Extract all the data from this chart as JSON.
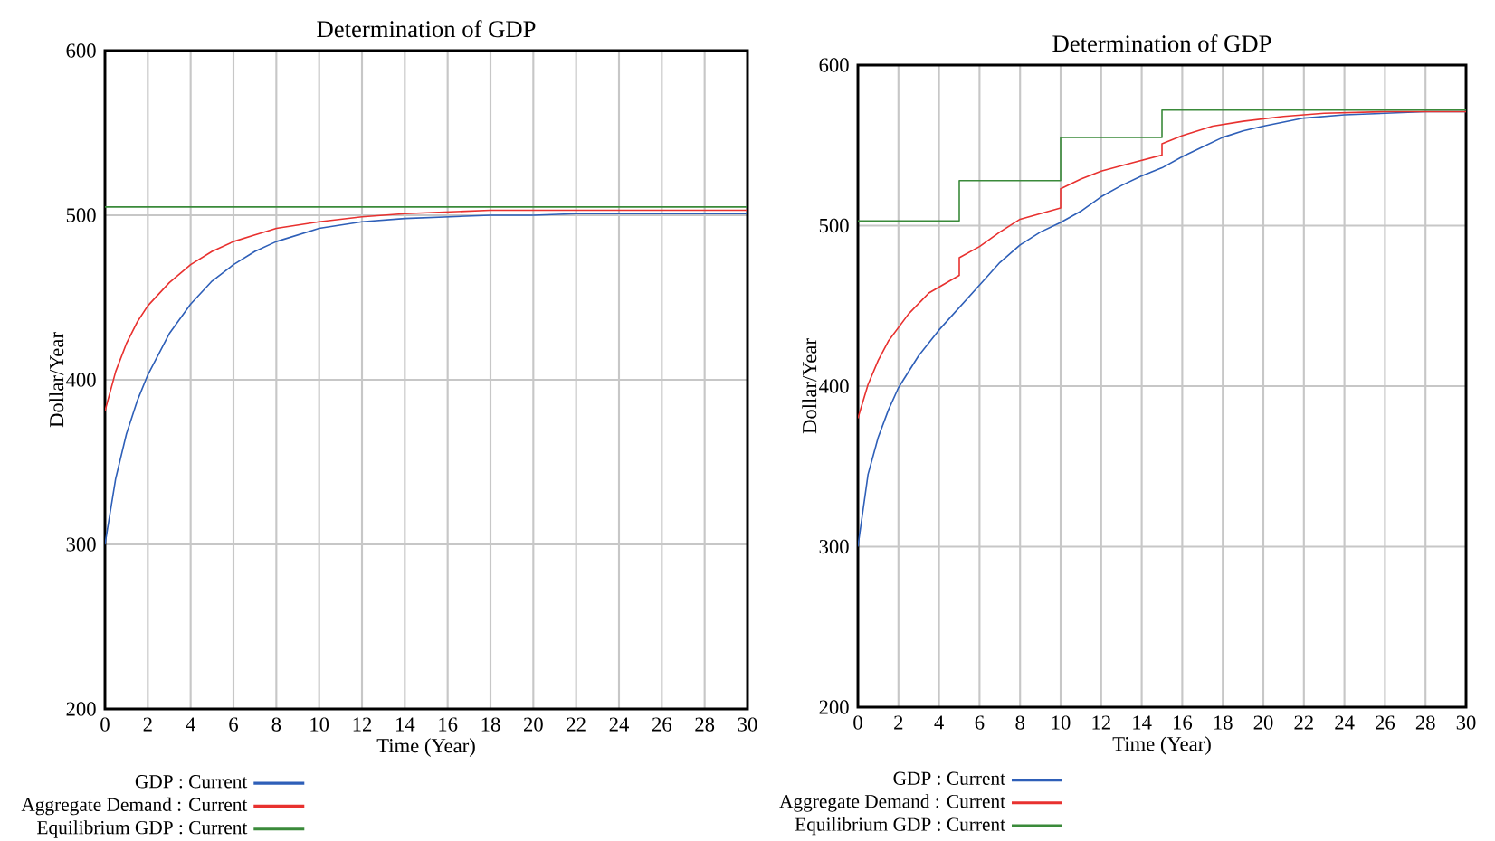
{
  "chart_data": [
    {
      "type": "line",
      "title": "Determination of GDP",
      "xlabel": "Time (Year)",
      "ylabel": "Dollar/Year",
      "xlim": [
        0,
        30
      ],
      "ylim": [
        200,
        600
      ],
      "xticks": [
        0,
        2,
        4,
        6,
        8,
        10,
        12,
        14,
        16,
        18,
        20,
        22,
        24,
        26,
        28,
        30
      ],
      "yticks": [
        200,
        300,
        400,
        500,
        600
      ],
      "grid": true,
      "legend": "bottom",
      "series": [
        {
          "name": "GDP : Current",
          "color": "#2e5fb8",
          "x": [
            0,
            0.5,
            1,
            1.5,
            2,
            3,
            4,
            5,
            6,
            7,
            8,
            10,
            12,
            14,
            16,
            18,
            20,
            22,
            25,
            30
          ],
          "values": [
            300,
            340,
            367,
            387,
            403,
            428,
            446,
            460,
            470,
            478,
            484,
            492,
            496,
            498,
            499,
            500,
            500,
            501,
            501,
            501
          ]
        },
        {
          "name": "Aggregate Demand : Current",
          "color": "#e8312f",
          "x": [
            0,
            0.5,
            1,
            1.5,
            2,
            3,
            4,
            5,
            6,
            7,
            8,
            10,
            12,
            14,
            16,
            18,
            20,
            22,
            25,
            30
          ],
          "values": [
            381,
            405,
            422,
            435,
            445,
            459,
            470,
            478,
            484,
            488,
            492,
            496,
            499,
            501,
            502,
            503,
            503,
            503,
            503,
            503
          ]
        },
        {
          "name": "Equilibrium GDP : Current",
          "color": "#3a8a3a",
          "type": "step",
          "x": [
            0,
            30
          ],
          "values": [
            505,
            505
          ]
        }
      ]
    },
    {
      "type": "line",
      "title": "Determination of GDP",
      "xlabel": "Time (Year)",
      "ylabel": "Dollar/Year",
      "xlim": [
        0,
        30
      ],
      "ylim": [
        200,
        600
      ],
      "xticks": [
        0,
        2,
        4,
        6,
        8,
        10,
        12,
        14,
        16,
        18,
        20,
        22,
        24,
        26,
        28,
        30
      ],
      "yticks": [
        200,
        300,
        400,
        500,
        600
      ],
      "grid": true,
      "legend": "bottom",
      "series": [
        {
          "name": "GDP : Current",
          "color": "#2e5fb8",
          "x": [
            0,
            0.5,
            1,
            1.5,
            2,
            3,
            4,
            5,
            6,
            7,
            8,
            9,
            10,
            11,
            12,
            13,
            14,
            15,
            16,
            17,
            18,
            19,
            20,
            22,
            24,
            26,
            28,
            30
          ],
          "values": [
            300,
            345,
            368,
            385,
            399,
            419,
            435,
            449,
            463,
            477,
            488,
            496,
            502,
            509,
            518,
            525,
            531,
            536,
            543,
            549,
            555,
            559,
            562,
            567,
            569,
            570,
            571,
            571
          ]
        },
        {
          "name": "Aggregate Demand : Current",
          "color": "#e8312f",
          "x": [
            0,
            0.5,
            1,
            1.5,
            2.5,
            3.5,
            5,
            5,
            6,
            7,
            8,
            10,
            10,
            11,
            12,
            13.5,
            15,
            15,
            16,
            17.5,
            19,
            21,
            23,
            26,
            30
          ],
          "values": [
            380,
            401,
            416,
            428,
            445,
            458,
            469,
            480,
            487,
            496,
            504,
            511,
            523,
            529,
            534,
            539,
            544,
            551,
            556,
            562,
            565,
            568,
            570,
            571,
            571
          ]
        },
        {
          "name": "Equilibrium GDP : Current",
          "color": "#3a8a3a",
          "type": "step",
          "x": [
            0,
            5,
            10,
            15,
            30
          ],
          "values": [
            503,
            528,
            555,
            572,
            572
          ]
        }
      ]
    }
  ]
}
